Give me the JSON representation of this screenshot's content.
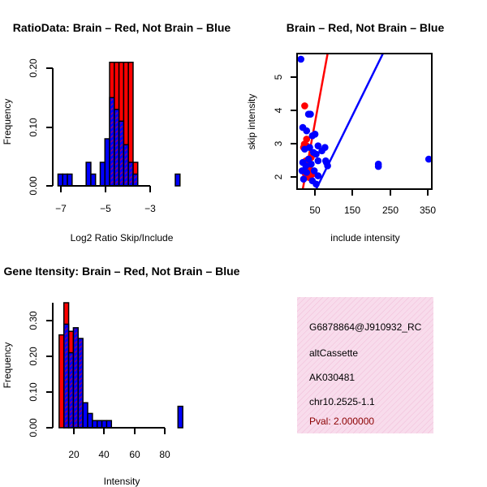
{
  "chart_data": [
    {
      "id": "ratio-hist",
      "type": "histogram",
      "title": "RatioData: Brain – Red, Not Brain – Blue",
      "xlabel": "Log2 Ratio Skip/Include",
      "ylabel": "Frequency",
      "xlim": [
        -7.15,
        -0.1
      ],
      "ylim": [
        0,
        0.2
      ],
      "xticks": [
        -7,
        -5,
        -3
      ],
      "xtick_labels": [
        "−7",
        "−5",
        "−3"
      ],
      "yticks": [
        0.0,
        0.1,
        0.2
      ],
      "ytick_labels": [
        "0.00",
        "0.10",
        "0.20"
      ],
      "bin_width": 0.25,
      "series": [
        {
          "name": "Brain",
          "color": "#ff0000",
          "bins": [
            [
              -4.25,
              0.21
            ],
            [
              -4.0,
              0.21
            ],
            [
              -3.75,
              0.21
            ],
            [
              -3.5,
              0.21
            ],
            [
              -3.25,
              0.21
            ],
            [
              -3.0,
              0.04
            ]
          ]
        },
        {
          "name": "Not Brain",
          "color": "#0000ff",
          "bins": [
            [
              -7.0,
              0.02
            ],
            [
              -6.75,
              0.02
            ],
            [
              -6.5,
              0.02
            ],
            [
              -5.5,
              0.04
            ],
            [
              -5.25,
              0.02
            ],
            [
              -4.75,
              0.04
            ],
            [
              -4.5,
              0.08
            ],
            [
              -4.25,
              0.15
            ],
            [
              -4.0,
              0.13
            ],
            [
              -3.75,
              0.11
            ],
            [
              -3.5,
              0.07
            ],
            [
              -3.25,
              0.04
            ],
            [
              -3.0,
              0.02
            ],
            [
              -0.75,
              0.02
            ]
          ]
        }
      ]
    },
    {
      "id": "intensity-scatter",
      "type": "scatter",
      "title": "Brain – Red, Not Brain – Blue",
      "xlabel": "include intensity",
      "ylabel": "skip intensity",
      "xlim": [
        5,
        358
      ],
      "ylim": [
        1.65,
        5.72
      ],
      "xticks": [
        50,
        150,
        250,
        350
      ],
      "xtick_labels": [
        "50",
        "150",
        "250",
        "350"
      ],
      "yticks": [
        2,
        3,
        4,
        5
      ],
      "ytick_labels": [
        "2",
        "3",
        "4",
        "5"
      ],
      "series": [
        {
          "name": "Brain",
          "color": "#ff0000",
          "points": [
            [
              25,
              4.15
            ],
            [
              24,
              3.0
            ],
            [
              30,
              2.95
            ],
            [
              35,
              2.55
            ],
            [
              28,
              2.5
            ],
            [
              33,
              2.3
            ],
            [
              38,
              2.25
            ],
            [
              40,
              2.05
            ],
            [
              27,
              2.1
            ],
            [
              45,
              2.1
            ],
            [
              42,
              2.6
            ],
            [
              36,
              2.0
            ],
            [
              22,
              2.9
            ],
            [
              30,
              3.15
            ]
          ],
          "fit_line": [
            [
              20,
              1.65
            ],
            [
              85,
              5.72
            ]
          ]
        },
        {
          "name": "Not Brain",
          "color": "#0000ff",
          "points": [
            [
              15,
              5.55
            ],
            [
              35,
              3.9
            ],
            [
              40,
              3.9
            ],
            [
              20,
              3.5
            ],
            [
              30,
              3.4
            ],
            [
              52,
              3.3
            ],
            [
              45,
              3.25
            ],
            [
              60,
              2.95
            ],
            [
              38,
              2.9
            ],
            [
              25,
              2.85
            ],
            [
              48,
              2.75
            ],
            [
              70,
              2.8
            ],
            [
              55,
              2.7
            ],
            [
              35,
              2.55
            ],
            [
              20,
              2.45
            ],
            [
              28,
              2.35
            ],
            [
              42,
              2.4
            ],
            [
              60,
              2.5
            ],
            [
              80,
              2.5
            ],
            [
              85,
              2.35
            ],
            [
              18,
              2.2
            ],
            [
              30,
              2.15
            ],
            [
              50,
              2.2
            ],
            [
              60,
              2.05
            ],
            [
              22,
              1.95
            ],
            [
              45,
              1.9
            ],
            [
              55,
              1.8
            ],
            [
              82,
              2.45
            ],
            [
              218,
              2.4
            ],
            [
              218,
              2.33
            ],
            [
              350,
              2.55
            ],
            [
              78,
              2.9
            ]
          ],
          "fit_line": [
            [
              55,
              1.65
            ],
            [
              230,
              5.72
            ]
          ]
        }
      ]
    },
    {
      "id": "intensity-hist",
      "type": "histogram",
      "title": "Gene Itensity: Brain – Red, Not Brain – Blue",
      "xlabel": "Intensity",
      "ylabel": "Frequency",
      "xlim": [
        9,
        93
      ],
      "ylim": [
        0,
        0.35
      ],
      "xticks": [
        20,
        40,
        60,
        80
      ],
      "xtick_labels": [
        "20",
        "40",
        "60",
        "80"
      ],
      "yticks": [
        0.0,
        0.1,
        0.2,
        0.3
      ],
      "ytick_labels": [
        "0.00",
        "0.10",
        "0.20",
        "0.30"
      ],
      "bin_width": 3,
      "series": [
        {
          "name": "Brain",
          "color": "#ff0000",
          "bins": [
            [
              12,
              0.26
            ],
            [
              15,
              0.35
            ],
            [
              18,
              0.27
            ],
            [
              21,
              0.26
            ],
            [
              24,
              0.06
            ]
          ]
        },
        {
          "name": "Not Brain",
          "color": "#0000ff",
          "bins": [
            [
              15,
              0.29
            ],
            [
              18,
              0.21
            ],
            [
              21,
              0.28
            ],
            [
              24,
              0.25
            ],
            [
              27,
              0.07
            ],
            [
              30,
              0.04
            ],
            [
              33,
              0.02
            ],
            [
              36,
              0.02
            ],
            [
              39,
              0.02
            ],
            [
              42,
              0.02
            ],
            [
              87,
              0.06
            ]
          ]
        }
      ]
    }
  ],
  "info_panel": {
    "background": "#f8dcec",
    "lines": [
      "G6878864@J910932_RC",
      "altCassette",
      "AK030481",
      "chr10.2525-1.1"
    ],
    "pval": "Pval: 2.000000",
    "pval_color": "#8b0000"
  }
}
